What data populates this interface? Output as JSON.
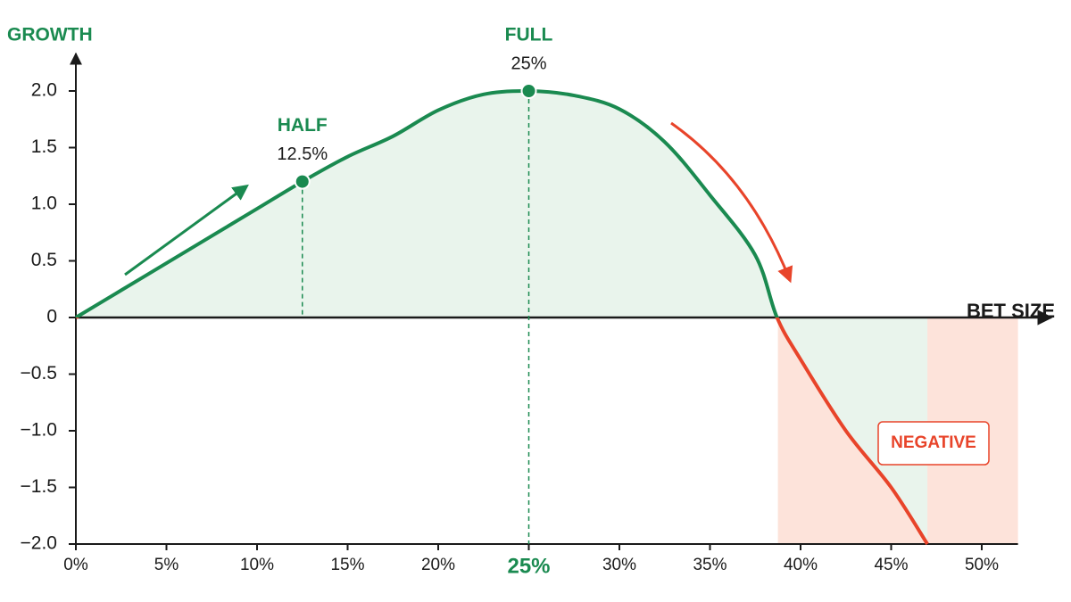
{
  "chart_data": {
    "type": "line",
    "y_label": "GROWTH",
    "x_label": "BET SIZE",
    "x": [
      0,
      2.5,
      5,
      7.5,
      10,
      12.5,
      15,
      17.5,
      20,
      22.5,
      25,
      27.5,
      30,
      32.5,
      35,
      37.5,
      38.7,
      40,
      42.5,
      45,
      47
    ],
    "series": [
      {
        "name": "GROWTH",
        "color": "#1a8a50",
        "negative_color": "#e8442a",
        "values": [
          0,
          0.24,
          0.48,
          0.72,
          0.96,
          1.2,
          1.42,
          1.6,
          1.83,
          1.97,
          2.0,
          1.96,
          1.84,
          1.55,
          1.08,
          0.55,
          0,
          -0.37,
          -1.0,
          -1.5,
          -2.0
        ]
      }
    ],
    "xlim": [
      0,
      52
    ],
    "ylim": [
      -2,
      2
    ],
    "xticks": [
      {
        "value": 0,
        "label": "0%"
      },
      {
        "value": 5,
        "label": "5%"
      },
      {
        "value": 10,
        "label": "10%"
      },
      {
        "value": 15,
        "label": "15%"
      },
      {
        "value": 20,
        "label": "20%"
      },
      {
        "value": 25,
        "label": "25%"
      },
      {
        "value": 30,
        "label": "30%"
      },
      {
        "value": 35,
        "label": "35%"
      },
      {
        "value": 40,
        "label": "40%"
      },
      {
        "value": 45,
        "label": "45%"
      },
      {
        "value": 50,
        "label": "50%"
      }
    ],
    "yticks": [
      {
        "value": 2,
        "label": "2.0"
      },
      1.5,
      {
        "value": 1,
        "label": "1.0"
      },
      0.5,
      0,
      {
        "value": -0.5,
        "label": "−0.5"
      },
      {
        "value": -1,
        "label": "−1.0"
      },
      {
        "value": -1.5,
        "label": "−1.5"
      },
      {
        "value": -2,
        "label": "−2.0"
      }
    ],
    "highlight_xtick": 25,
    "markers": [
      {
        "label": "HALF",
        "value_label": "12.5%",
        "x": 12.5,
        "y": 1.2
      },
      {
        "label": "FULL",
        "value_label": "25%",
        "x": 25,
        "y": 2.0
      }
    ],
    "negative_label": "NEGATIVE"
  }
}
